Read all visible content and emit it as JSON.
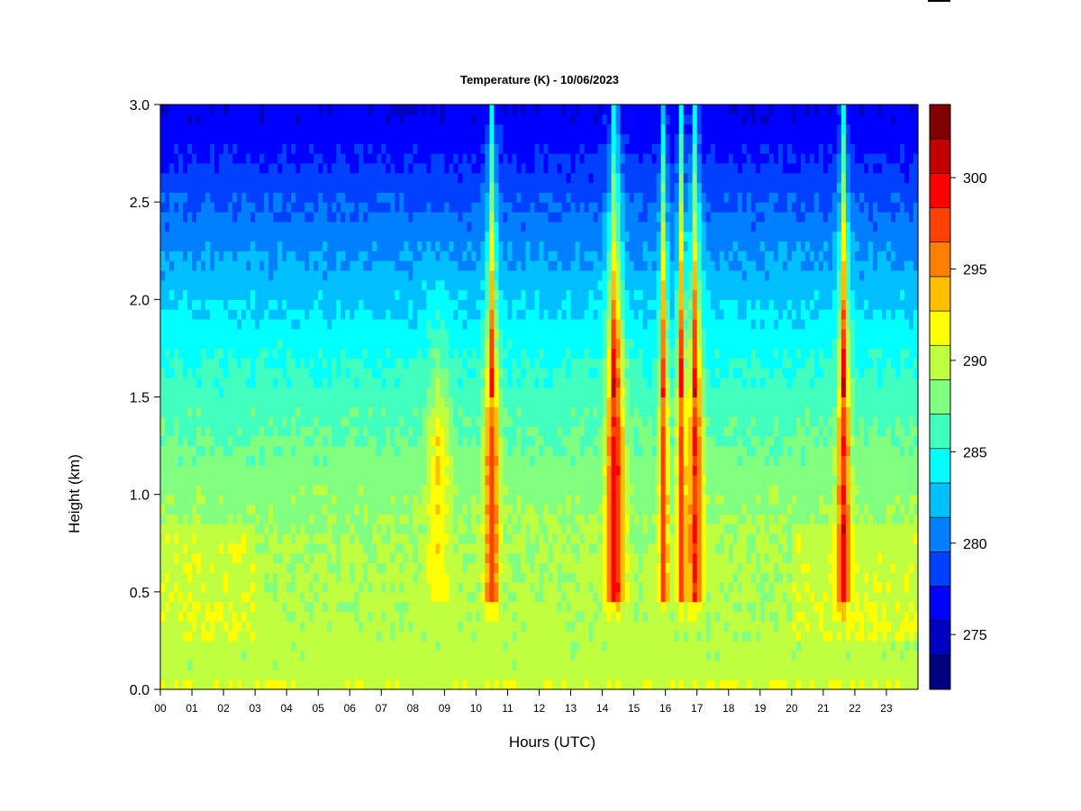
{
  "chart_data": {
    "type": "heatmap",
    "title": "Temperature (K) - 10/06/2023",
    "xlabel": "Hours (UTC)",
    "ylabel": "Height (km)",
    "x_ticks": [
      "00",
      "01",
      "02",
      "03",
      "04",
      "05",
      "06",
      "07",
      "08",
      "09",
      "10",
      "11",
      "12",
      "13",
      "14",
      "15",
      "16",
      "17",
      "18",
      "19",
      "20",
      "21",
      "22",
      "23"
    ],
    "xlim": [
      0,
      24
    ],
    "y_ticks": [
      "0.0",
      "0.5",
      "1.0",
      "1.5",
      "2.0",
      "2.5",
      "3.0"
    ],
    "ylim": [
      0,
      3.0
    ],
    "colorbar": {
      "ticks": [
        "275",
        "280",
        "285",
        "290",
        "295",
        "300"
      ],
      "range": [
        272,
        304
      ],
      "step": 2,
      "colors": [
        "#000080",
        "#0000c0",
        "#0000ff",
        "#0040ff",
        "#0080ff",
        "#00bfff",
        "#00ffff",
        "#40ffbf",
        "#80ff80",
        "#bfff40",
        "#ffff00",
        "#ffbf00",
        "#ff8000",
        "#ff4000",
        "#ff0000",
        "#c00000",
        "#800000"
      ]
    },
    "field": {
      "description_profile_heights_km": [
        0.0,
        0.1,
        0.3,
        0.5,
        0.8,
        1.1,
        1.4,
        1.7,
        2.0,
        2.3,
        2.6,
        2.8,
        3.0
      ],
      "background_K": [
        292,
        290.8,
        290.6,
        290.4,
        290,
        289,
        287.5,
        285.8,
        283.6,
        281.3,
        279,
        277.3,
        276.2
      ],
      "warm_plumes": [
        {
          "hour": 8.8,
          "width_h": 0.35,
          "peak_K": 293.5,
          "top_km": 1.9
        },
        {
          "hour": 10.5,
          "width_h": 0.22,
          "peak_K": 299,
          "top_km": 3.0
        },
        {
          "hour": 14.4,
          "width_h": 0.28,
          "peak_K": 301,
          "top_km": 3.0
        },
        {
          "hour": 15.95,
          "width_h": 0.14,
          "peak_K": 299,
          "top_km": 3.0
        },
        {
          "hour": 16.5,
          "width_h": 0.14,
          "peak_K": 299,
          "top_km": 3.0
        },
        {
          "hour": 16.95,
          "width_h": 0.22,
          "peak_K": 300,
          "top_km": 3.0
        },
        {
          "hour": 21.65,
          "width_h": 0.2,
          "peak_K": 300,
          "top_km": 3.0
        }
      ]
    }
  }
}
